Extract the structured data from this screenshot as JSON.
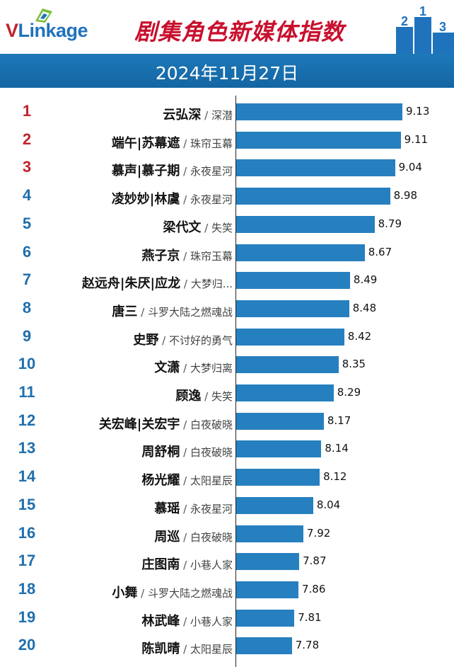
{
  "header": {
    "logo_text": "VLinkage",
    "title": "剧集角色新媒体指数",
    "date": "2024年11月27日"
  },
  "colors": {
    "bar": "#2680bf",
    "band": "#1466a3",
    "title": "#c8102e",
    "rank_top": "#c0232c",
    "rank_rest": "#1f6fae"
  },
  "chart_data": {
    "type": "bar",
    "orientation": "horizontal",
    "title": "剧集角色新媒体指数",
    "subtitle": "2024年11月27日",
    "ranks": [
      "1",
      "2",
      "3",
      "4",
      "5",
      "6",
      "7",
      "8",
      "9",
      "10",
      "11",
      "12",
      "13",
      "14",
      "15",
      "16",
      "17",
      "18",
      "19",
      "20"
    ],
    "roles": [
      "云弘深",
      "端午|苏幕遮",
      "慕声|慕子期",
      "凌妙妙|林虞",
      "梁代文",
      "燕子京",
      "赵远舟|朱厌|应龙",
      "唐三",
      "史野",
      "文潇",
      "顾逸",
      "关宏峰|关宏宇",
      "周舒桐",
      "杨光耀",
      "慕瑶",
      "周巡",
      "庄图南",
      "小舞",
      "林武峰",
      "陈凯晴"
    ],
    "shows": [
      "深潜",
      "珠帘玉幕",
      "永夜星河",
      "永夜星河",
      "失笑",
      "珠帘玉幕",
      "大梦归...",
      "斗罗大陆之燃魂战",
      "不讨好的勇气",
      "大梦归离",
      "失笑",
      "白夜破晓",
      "白夜破晓",
      "太阳星辰",
      "永夜星河",
      "白夜破晓",
      "小巷人家",
      "斗罗大陆之燃魂战",
      "小巷人家",
      "太阳星辰"
    ],
    "values": [
      9.13,
      9.11,
      9.04,
      8.98,
      8.79,
      8.67,
      8.49,
      8.48,
      8.42,
      8.35,
      8.29,
      8.17,
      8.14,
      8.12,
      8.04,
      7.92,
      7.87,
      7.86,
      7.81,
      7.78
    ],
    "value_labels": [
      "9.13",
      "9.11",
      "9.04",
      "8.98",
      "8.79",
      "8.67",
      "8.49",
      "8.48",
      "8.42",
      "8.35",
      "8.29",
      "8.17",
      "8.14",
      "8.12",
      "8.04",
      "7.92",
      "7.87",
      "7.86",
      "7.81",
      "7.78"
    ],
    "xlim": [
      7.7,
      9.13
    ],
    "grid": false,
    "legend": "none"
  }
}
